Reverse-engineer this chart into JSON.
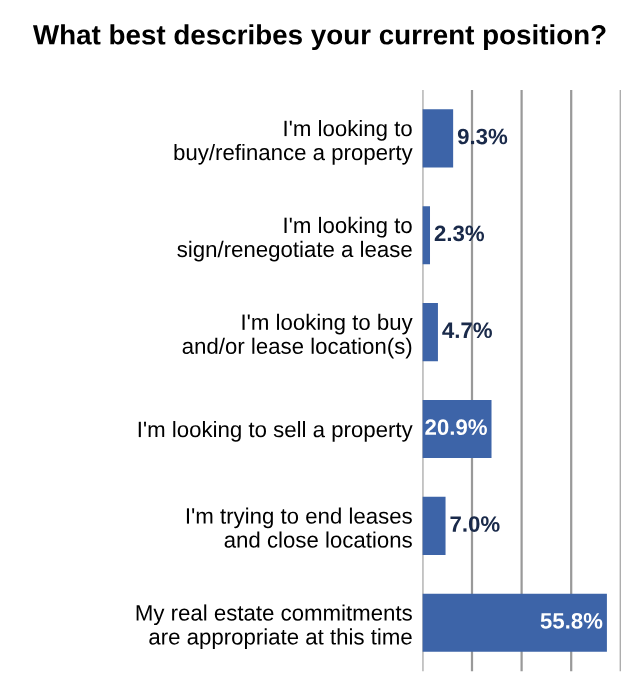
{
  "chart_data": {
    "type": "bar",
    "orientation": "horizontal",
    "title": "What best describes your current position?",
    "categories": [
      "I'm looking to\nbuy/refinance a property",
      "I'm looking to\nsign/renegotiate a lease",
      "I'm looking to buy\nand/or lease location(s)",
      "I'm looking to sell a property",
      "I'm trying to end leases\nand close locations",
      "My real estate commitments\nare appropriate at this time"
    ],
    "values": [
      9.3,
      2.3,
      4.7,
      20.9,
      7.0,
      55.8
    ],
    "value_labels": [
      "9.3%",
      "2.3%",
      "4.7%",
      "20.9%",
      "7.0%",
      "55.8%"
    ],
    "color": "#3d64a8",
    "xlim": [
      0,
      60
    ],
    "xticks": [
      {
        "value": 0,
        "label": null
      },
      {
        "value": 15,
        "label": null
      },
      {
        "value": 30,
        "label": null
      },
      {
        "value": 45,
        "label": null
      },
      {
        "value": 60,
        "label": null
      }
    ],
    "grid": "x"
  }
}
